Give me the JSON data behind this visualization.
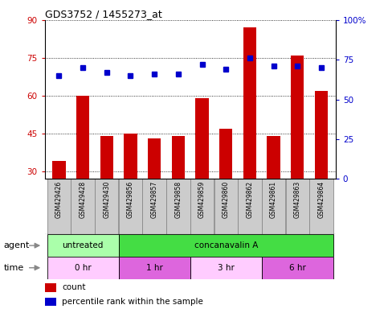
{
  "title": "GDS3752 / 1455273_at",
  "samples": [
    "GSM429426",
    "GSM429428",
    "GSM429430",
    "GSM429856",
    "GSM429857",
    "GSM429858",
    "GSM429859",
    "GSM429860",
    "GSM429862",
    "GSM429861",
    "GSM429863",
    "GSM429864"
  ],
  "counts": [
    34,
    60,
    44,
    45,
    43,
    44,
    59,
    47,
    87,
    44,
    76,
    62
  ],
  "percentile_ranks": [
    65,
    70,
    67,
    65,
    66,
    66,
    72,
    69,
    76,
    71,
    71,
    70
  ],
  "ylim_left": [
    27,
    90
  ],
  "ylim_right": [
    0,
    100
  ],
  "yticks_left": [
    30,
    45,
    60,
    75,
    90
  ],
  "yticks_right": [
    0,
    25,
    50,
    75,
    100
  ],
  "ytick_right_labels": [
    "0",
    "25",
    "50",
    "75",
    "100%"
  ],
  "bar_color": "#cc0000",
  "dot_color": "#0000cc",
  "grid_color": "#000000",
  "bg_color": "#ffffff",
  "agent_row": [
    {
      "label": "untreated",
      "start": 0,
      "end": 3,
      "color": "#aaffaa"
    },
    {
      "label": "concanavalin A",
      "start": 3,
      "end": 12,
      "color": "#44dd44"
    }
  ],
  "time_row": [
    {
      "label": "0 hr",
      "start": 0,
      "end": 3,
      "color": "#ffccff"
    },
    {
      "label": "1 hr",
      "start": 3,
      "end": 6,
      "color": "#dd66dd"
    },
    {
      "label": "3 hr",
      "start": 6,
      "end": 9,
      "color": "#ffccff"
    },
    {
      "label": "6 hr",
      "start": 9,
      "end": 12,
      "color": "#dd66dd"
    }
  ],
  "legend_count_label": "count",
  "legend_pct_label": "percentile rank within the sample",
  "agent_label": "agent",
  "time_label": "time",
  "sample_bg_color": "#cccccc",
  "sample_border_color": "#888888"
}
